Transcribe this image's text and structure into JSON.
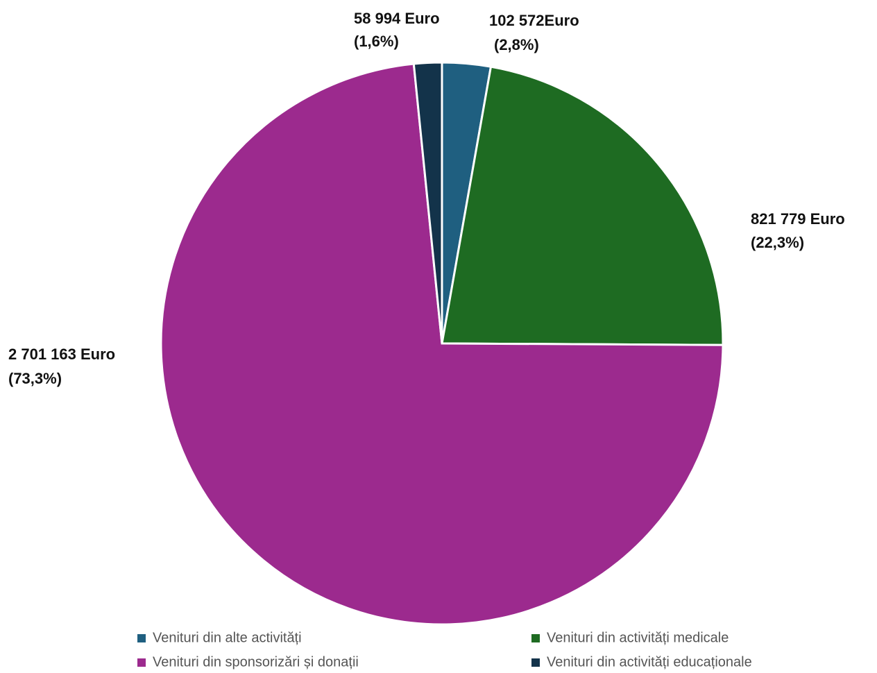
{
  "chart_data": {
    "type": "pie",
    "categories": [
      "Venituri din alte activități",
      "Venituri din activități medicale",
      "Venituri din sponsorizări și donații",
      "Venituri din activități educaționale"
    ],
    "values": [
      102572,
      821779,
      2701163,
      58994
    ],
    "value_labels": [
      "102 572Euro",
      "821 779 Euro",
      "2 701 163 Euro",
      "58 994 Euro"
    ],
    "percent_labels": [
      "(2,8%)",
      "(22,3%)",
      "(73,3%)",
      "(1,6%)"
    ],
    "colors": [
      "#1f5f80",
      "#1e6b22",
      "#9c2a8e",
      "#13334a"
    ],
    "legend": "bottom"
  }
}
